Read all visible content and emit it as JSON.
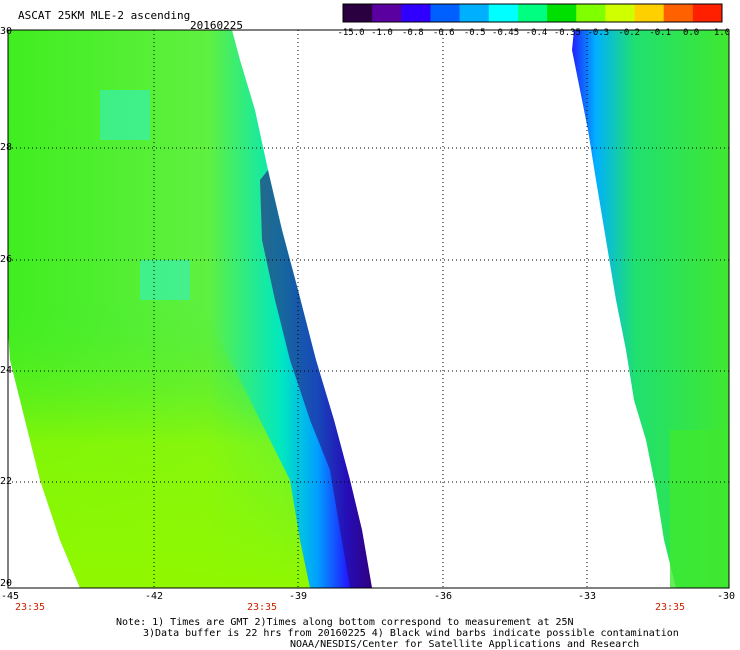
{
  "header": {
    "title": "ASCAT 25KM MLE-2 ascending",
    "date": "20160225"
  },
  "colorbar": {
    "labels": [
      "-15.0",
      "-1.0",
      "-0.8",
      "-0.6",
      "-0.5",
      "-0.45",
      "-0.4",
      "-0.35",
      "-0.3",
      "-0.2",
      "-0.1",
      "0.0",
      "1.0"
    ],
    "colors": [
      "#2a0040",
      "#5a00a0",
      "#3000ff",
      "#0060ff",
      "#00b0ff",
      "#00ffff",
      "#00ff80",
      "#00e000",
      "#80ff00",
      "#d0ff00",
      "#ffd000",
      "#ff6000",
      "#ff2000"
    ]
  },
  "axes": {
    "lat_labels": [
      "30",
      "28",
      "26",
      "24",
      "22",
      "20"
    ],
    "lon_labels": [
      "-45",
      "-42",
      "-39",
      "-36",
      "-33",
      "-30"
    ],
    "lat_range": [
      20,
      30
    ],
    "lon_range": [
      -45,
      -30
    ]
  },
  "time_labels": [
    "23:35",
    "23:35",
    "23:35"
  ],
  "notes": {
    "line1": "Note: 1) Times are GMT 2)Times along bottom correspond to measurement at 25N",
    "line2": "3)Data buffer is 22 hrs from 20160225 4) Black wind barbs indicate possible contamination",
    "line3": "NOAA/NESDIS/Center for Satellite Applications and Research"
  }
}
